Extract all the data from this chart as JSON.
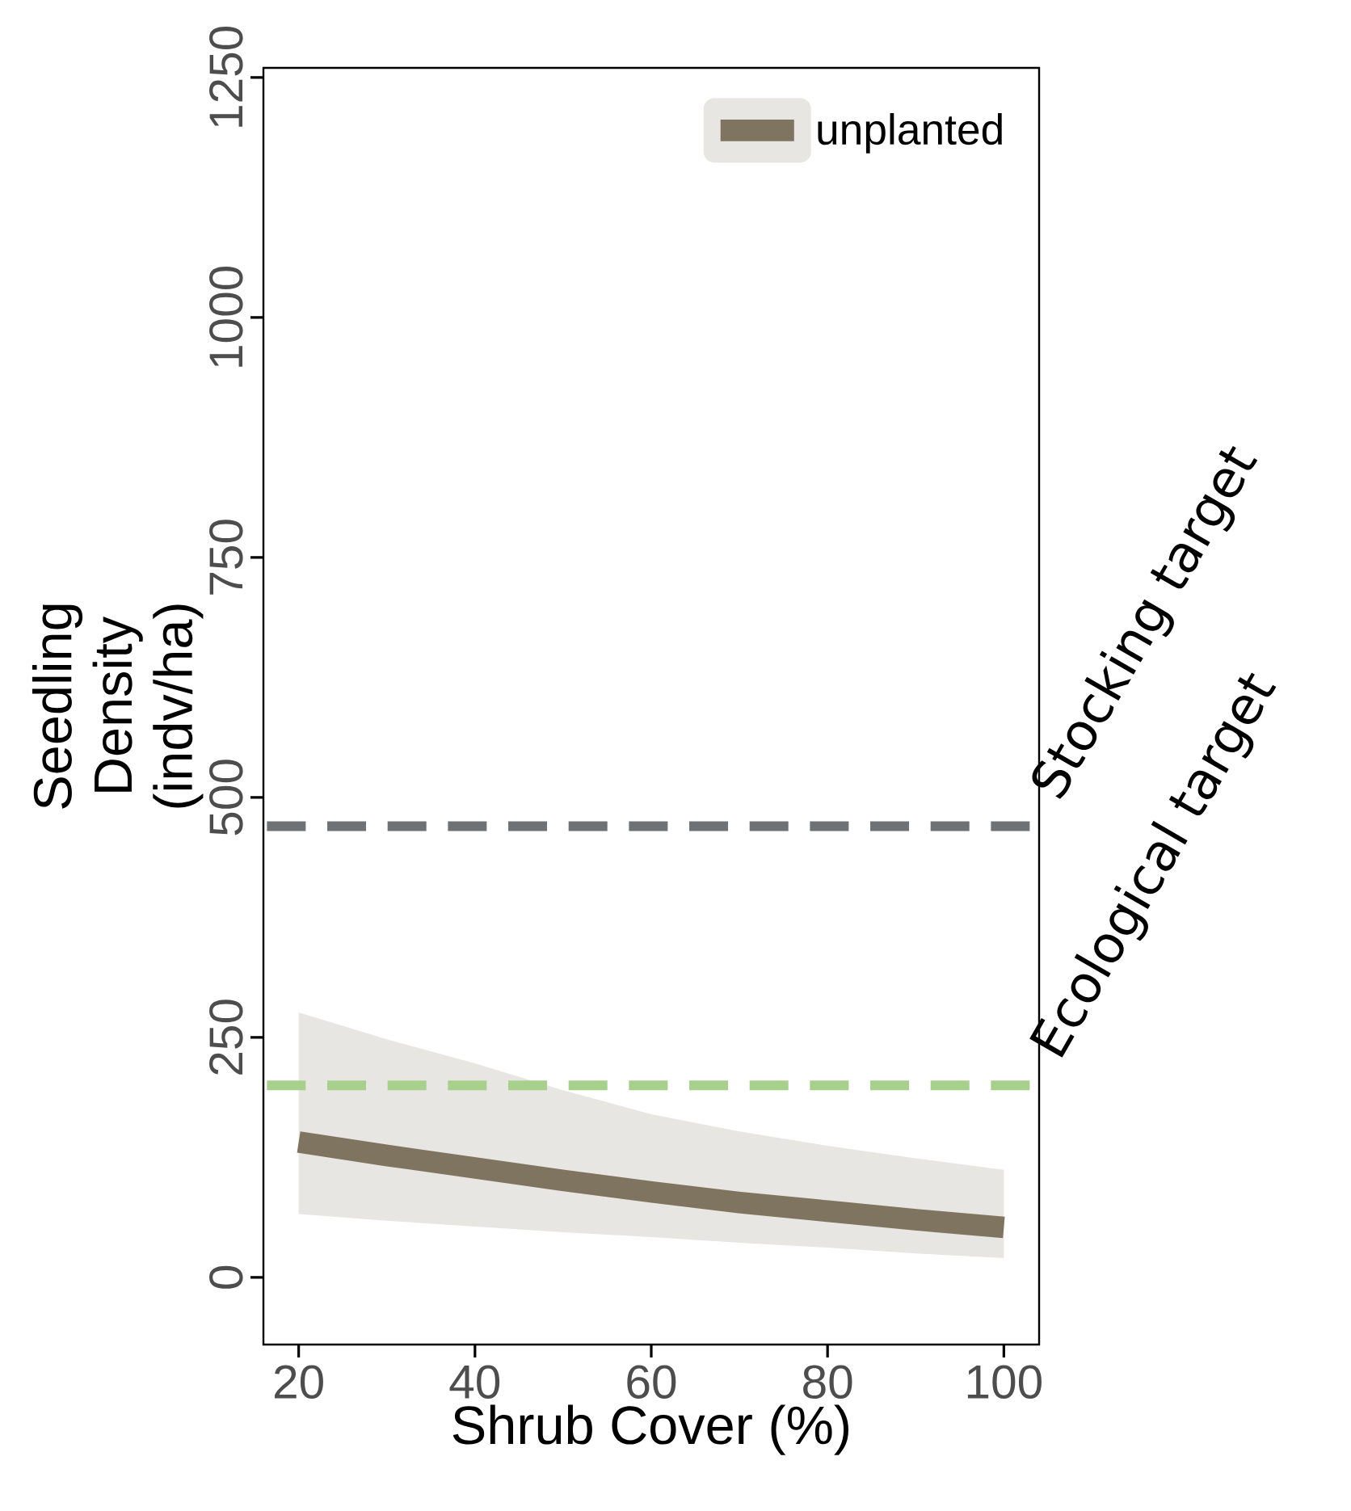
{
  "chart_data": {
    "type": "line",
    "xlabel": "Shrub Cover (%)",
    "ylabel": "Seedling Density (indv/ha)",
    "xlim": [
      16,
      104
    ],
    "ylim": [
      -70,
      1260
    ],
    "xticks": [
      20,
      40,
      60,
      80,
      100
    ],
    "yticks": [
      0,
      250,
      500,
      750,
      1000,
      1250
    ],
    "series": [
      {
        "name": "unplanted",
        "color": "#7f745f",
        "x": [
          20,
          30,
          40,
          50,
          60,
          70,
          80,
          90,
          100
        ],
        "values": [
          141,
          127,
          114,
          101,
          89,
          78,
          69,
          60,
          52
        ],
        "lower": [
          66,
          59,
          53,
          47,
          42,
          36,
          31,
          25,
          20
        ],
        "upper": [
          276,
          248,
          223,
          195,
          170,
          152,
          137,
          124,
          112
        ]
      }
    ],
    "ref_lines": [
      {
        "axis": "y",
        "value": 470,
        "label": "Stocking target",
        "color": "#6e7275",
        "line_style": "dashed"
      },
      {
        "axis": "y",
        "value": 200,
        "label": "Ecological target",
        "color": "#a8d08d",
        "line_style": "dashed"
      }
    ],
    "legend": "top right",
    "grid": false,
    "marker": "none",
    "line_style": "solid"
  }
}
